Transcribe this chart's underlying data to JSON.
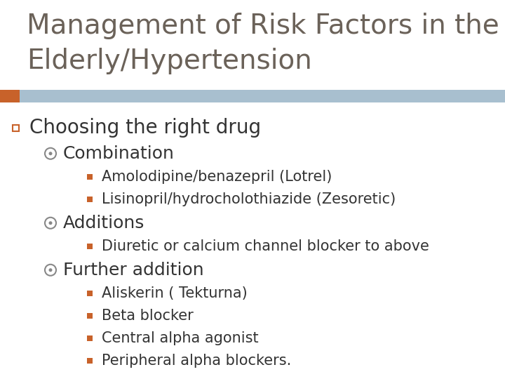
{
  "title_line1": "Management of Risk Factors in the",
  "title_line2": "Elderly/Hypertension",
  "title_color": "#6b6259",
  "title_fontsize": 28,
  "background_color": "#ffffff",
  "header_bar_color": "#a8bfcf",
  "orange_accent_color": "#c8622a",
  "text_color": "#333333",
  "level2_color": "#888888",
  "level1_fontsize": 20,
  "level2_fontsize": 18,
  "level3_fontsize": 15,
  "content": [
    {
      "level": 1,
      "text": "Choosing the right drug"
    },
    {
      "level": 2,
      "text": "Combination"
    },
    {
      "level": 3,
      "text": "Amolodipine/benazepril (Lotrel)"
    },
    {
      "level": 3,
      "text": "Lisinopril/hydrocholothiazide (Zesoretic)"
    },
    {
      "level": 2,
      "text": "Additions"
    },
    {
      "level": 3,
      "text": "Diuretic or calcium channel blocker to above"
    },
    {
      "level": 2,
      "text": "Further addition"
    },
    {
      "level": 3,
      "text": "Aliskerin ( Tekturna)"
    },
    {
      "level": 3,
      "text": "Beta blocker"
    },
    {
      "level": 3,
      "text": "Central alpha agonist"
    },
    {
      "level": 3,
      "text": "Peripheral alpha blockers."
    }
  ]
}
